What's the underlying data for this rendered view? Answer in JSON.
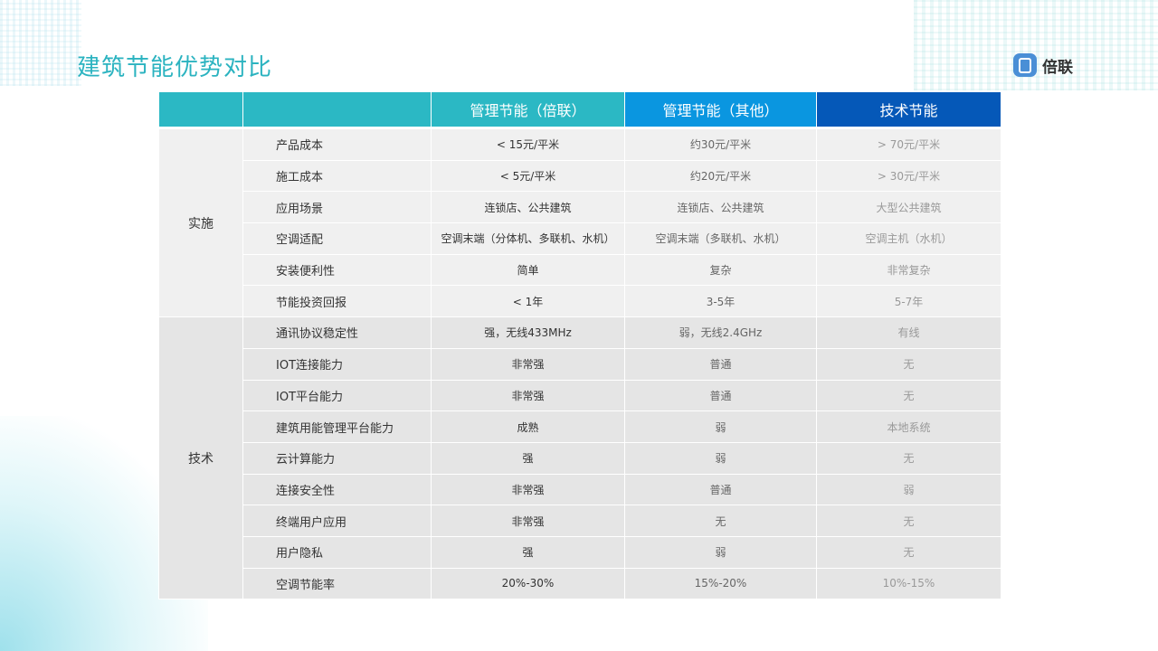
{
  "title": "建筑节能优势对比",
  "logo": "倍联",
  "colors": {
    "title": "#2bb3c0",
    "header_col1": "#2bb8c4",
    "header_col2": "#0a96e0",
    "header_col3": "#0558b8"
  },
  "headers": [
    "",
    "",
    "管理节能（倍联）",
    "管理节能（其他）",
    "技术节能"
  ],
  "groups": [
    {
      "name": "实施",
      "rows": [
        {
          "label": "产品成本",
          "values": [
            "< 15元/平米",
            "约30元/平米",
            "> 70元/平米"
          ]
        },
        {
          "label": "施工成本",
          "values": [
            "< 5元/平米",
            "约20元/平米",
            "> 30元/平米"
          ]
        },
        {
          "label": "应用场景",
          "values": [
            "连锁店、公共建筑",
            "连锁店、公共建筑",
            "大型公共建筑"
          ]
        },
        {
          "label": "空调适配",
          "values": [
            "空调末端（分体机、多联机、水机）",
            "空调末端（多联机、水机）",
            "空调主机（水机）"
          ]
        },
        {
          "label": "安装便利性",
          "values": [
            "简单",
            "复杂",
            "非常复杂"
          ]
        },
        {
          "label": "节能投资回报",
          "values": [
            "< 1年",
            "3-5年",
            "5-7年"
          ]
        }
      ]
    },
    {
      "name": "技术",
      "rows": [
        {
          "label": "通讯协议稳定性",
          "values": [
            "强，无线433MHz",
            "弱，无线2.4GHz",
            "有线"
          ]
        },
        {
          "label": "IOT连接能力",
          "values": [
            "非常强",
            "普通",
            "无"
          ]
        },
        {
          "label": "IOT平台能力",
          "values": [
            "非常强",
            "普通",
            "无"
          ]
        },
        {
          "label": "建筑用能管理平台能力",
          "values": [
            "成熟",
            "弱",
            "本地系统"
          ]
        },
        {
          "label": "云计算能力",
          "values": [
            "强",
            "弱",
            "无"
          ]
        },
        {
          "label": "连接安全性",
          "values": [
            "非常强",
            "普通",
            "弱"
          ]
        },
        {
          "label": "终端用户应用",
          "values": [
            "非常强",
            "无",
            "无"
          ]
        },
        {
          "label": "用户隐私",
          "values": [
            "强",
            "弱",
            "无"
          ]
        },
        {
          "label": "空调节能率",
          "values": [
            "20%-30%",
            "15%-20%",
            "10%-15%"
          ]
        }
      ]
    }
  ]
}
